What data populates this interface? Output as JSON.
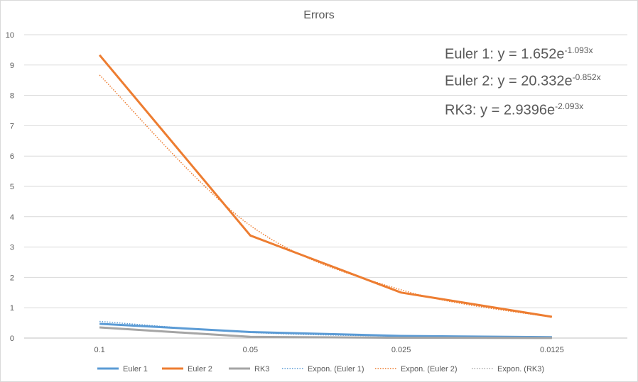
{
  "chart_data": {
    "type": "line",
    "title": "Errors",
    "categories": [
      "0.1",
      "0.05",
      "0.025",
      "0.0125"
    ],
    "ylim": [
      0,
      10
    ],
    "yticks": [
      0,
      1,
      2,
      3,
      4,
      5,
      6,
      7,
      8,
      9,
      10
    ],
    "grid": true,
    "legend_position": "bottom",
    "series": [
      {
        "name": "Euler 1",
        "values": [
          0.47,
          0.2,
          0.07,
          0.03
        ],
        "color": "#5b9bd5",
        "style": "solid"
      },
      {
        "name": "Euler 2",
        "values": [
          9.33,
          3.38,
          1.5,
          0.7
        ],
        "color": "#ed7d31",
        "style": "solid"
      },
      {
        "name": "RK3",
        "values": [
          0.35,
          0.04,
          0.01,
          0.003
        ],
        "color": "#a5a5a5",
        "style": "solid"
      },
      {
        "name": "Expon. (Euler 1)",
        "values": [
          0.55,
          0.185,
          0.062,
          0.021
        ],
        "color": "#5b9bd5",
        "style": "dotted",
        "smooth": true
      },
      {
        "name": "Expon. (Euler 2)",
        "values": [
          8.67,
          3.71,
          1.59,
          0.68
        ],
        "color": "#ed7d31",
        "style": "dotted",
        "smooth": true
      },
      {
        "name": "Expon. (RK3)",
        "values": [
          0.36,
          0.045,
          0.0055,
          0.0007
        ],
        "color": "#a5a5a5",
        "style": "dotted",
        "smooth": true
      }
    ],
    "annotations": [
      {
        "prefix": "Euler 1: y = 1.652e",
        "exponent": "-1.093x"
      },
      {
        "prefix": "Euler 2: y = 20.332e",
        "exponent": "-0.852x"
      },
      {
        "prefix": "RK3: y = 2.9396e",
        "exponent": "-2.093x"
      }
    ]
  }
}
